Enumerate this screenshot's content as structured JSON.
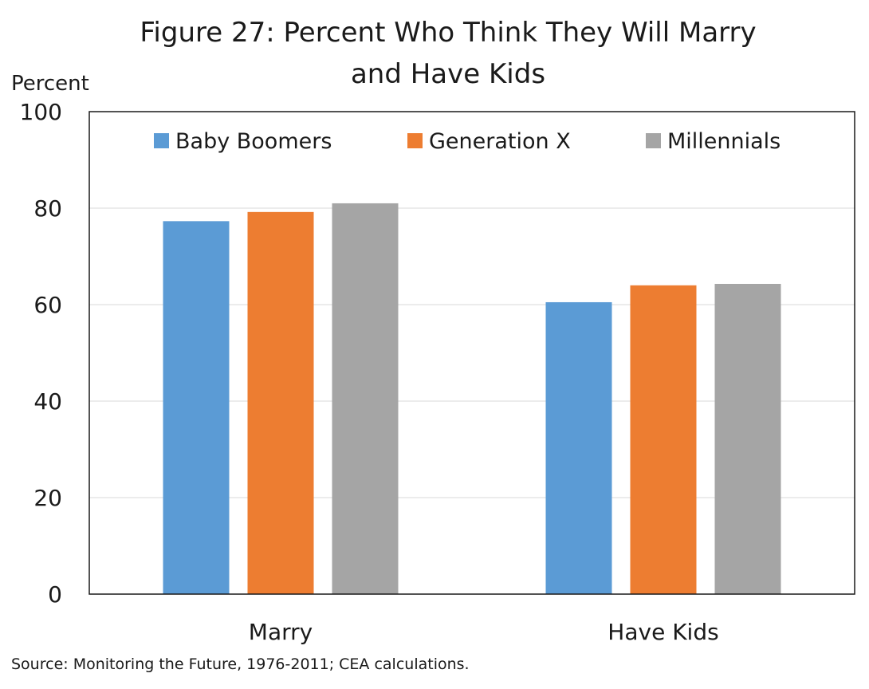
{
  "chart_data": {
    "type": "bar",
    "title_line1": "Figure 27: Percent Who Think They Will Marry",
    "title_line2": "and Have Kids",
    "xlabel": "",
    "ylabel": "Percent",
    "ylim": [
      0,
      100
    ],
    "yticks": [
      "0",
      "20",
      "40",
      "60",
      "80",
      "100"
    ],
    "grid": true,
    "legend_position": "top",
    "categories": [
      "Marry",
      "Have Kids"
    ],
    "series": [
      {
        "name": "Baby Boomers",
        "color": "#5b9bd5",
        "values": [
          77.3,
          60.5
        ]
      },
      {
        "name": "Generation X",
        "color": "#ed7d31",
        "values": [
          79.2,
          64.0
        ]
      },
      {
        "name": "Millennials",
        "color": "#a5a5a5",
        "values": [
          81.0,
          64.3
        ]
      }
    ],
    "source": "Source: Monitoring the Future, 1976-2011; CEA calculations."
  }
}
